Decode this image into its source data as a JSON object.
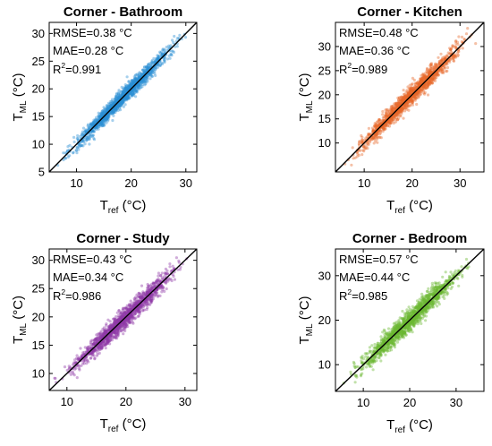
{
  "figure": {
    "panels": [
      {
        "title": "Corner - Bathroom",
        "xlabel": "T",
        "xlabel_sub": "ref",
        "xlabel_unit": " (°C)",
        "ylabel": "T",
        "ylabel_sub": "ML",
        "ylabel_unit": " (°C)",
        "rmse": "RMSE=0.38 °C",
        "mae": "MAE=0.28 °C",
        "r2_prefix": "R",
        "r2_sup": "2",
        "r2_value": "=0.991"
      },
      {
        "title": "Corner - Kitchen",
        "xlabel": "T",
        "xlabel_sub": "ref",
        "xlabel_unit": " (°C)",
        "ylabel": "T",
        "ylabel_sub": "ML",
        "ylabel_unit": " (°C)",
        "rmse": "RMSE=0.48 °C",
        "mae": "MAE=0.36 °C",
        "r2_prefix": "R",
        "r2_sup": "2",
        "r2_value": "=0.989"
      },
      {
        "title": "Corner - Study",
        "xlabel": "T",
        "xlabel_sub": "ref",
        "xlabel_unit": " (°C)",
        "ylabel": "T",
        "ylabel_sub": "ML",
        "ylabel_unit": " (°C)",
        "rmse": "RMSE=0.43 °C",
        "mae": "MAE=0.34 °C",
        "r2_prefix": "R",
        "r2_sup": "2",
        "r2_value": "=0.986"
      },
      {
        "title": "Corner - Bedroom",
        "xlabel": "T",
        "xlabel_sub": "ref",
        "xlabel_unit": " (°C)",
        "ylabel": "T",
        "ylabel_sub": "ML",
        "ylabel_unit": " (°C)",
        "rmse": "RMSE=0.57 °C",
        "mae": "MAE=0.44 °C",
        "r2_prefix": "R",
        "r2_sup": "2",
        "r2_value": "=0.985"
      }
    ]
  },
  "chart_data": [
    {
      "type": "scatter",
      "title": "Corner - Bathroom",
      "xlabel": "Tref (°C)",
      "ylabel": "TML (°C)",
      "xlim": [
        5,
        32
      ],
      "ylim": [
        5,
        32
      ],
      "xticks": [
        10,
        20,
        30
      ],
      "yticks": [
        5,
        10,
        15,
        20,
        25,
        30
      ],
      "color": "#2a8fd4",
      "identity_line_color": "#000000",
      "point_range": [
        6,
        31
      ],
      "noise_sd": 0.38,
      "stats": {
        "RMSE": 0.38,
        "MAE": 0.28,
        "R2": 0.991
      }
    },
    {
      "type": "scatter",
      "title": "Corner - Kitchen",
      "xlabel": "Tref (°C)",
      "ylabel": "TML (°C)",
      "xlim": [
        4,
        35
      ],
      "ylim": [
        4,
        35
      ],
      "xticks": [
        10,
        20,
        30
      ],
      "yticks": [
        10,
        15,
        20,
        25,
        30
      ],
      "color": "#e8692c",
      "identity_line_color": "#000000",
      "point_range": [
        5,
        34
      ],
      "noise_sd": 0.48,
      "stats": {
        "RMSE": 0.48,
        "MAE": 0.36,
        "R2": 0.989
      }
    },
    {
      "type": "scatter",
      "title": "Corner - Study",
      "xlabel": "Tref (°C)",
      "ylabel": "TML (°C)",
      "xlim": [
        7,
        32
      ],
      "ylim": [
        7,
        32
      ],
      "xticks": [
        10,
        20,
        30
      ],
      "yticks": [
        10,
        15,
        20,
        25,
        30
      ],
      "color": "#8f3aa6",
      "identity_line_color": "#000000",
      "point_range": [
        7.5,
        31
      ],
      "noise_sd": 0.43,
      "stats": {
        "RMSE": 0.43,
        "MAE": 0.34,
        "R2": 0.986
      }
    },
    {
      "type": "scatter",
      "title": "Corner - Bedroom",
      "xlabel": "Tref (°C)",
      "ylabel": "TML (°C)",
      "xlim": [
        4,
        36
      ],
      "ylim": [
        4,
        36
      ],
      "xticks": [
        10,
        20,
        30
      ],
      "yticks": [
        10,
        20,
        30
      ],
      "color": "#6cb833",
      "identity_line_color": "#000000",
      "point_range": [
        5,
        35
      ],
      "noise_sd": 0.57,
      "stats": {
        "RMSE": 0.57,
        "MAE": 0.44,
        "R2": 0.985
      }
    }
  ]
}
